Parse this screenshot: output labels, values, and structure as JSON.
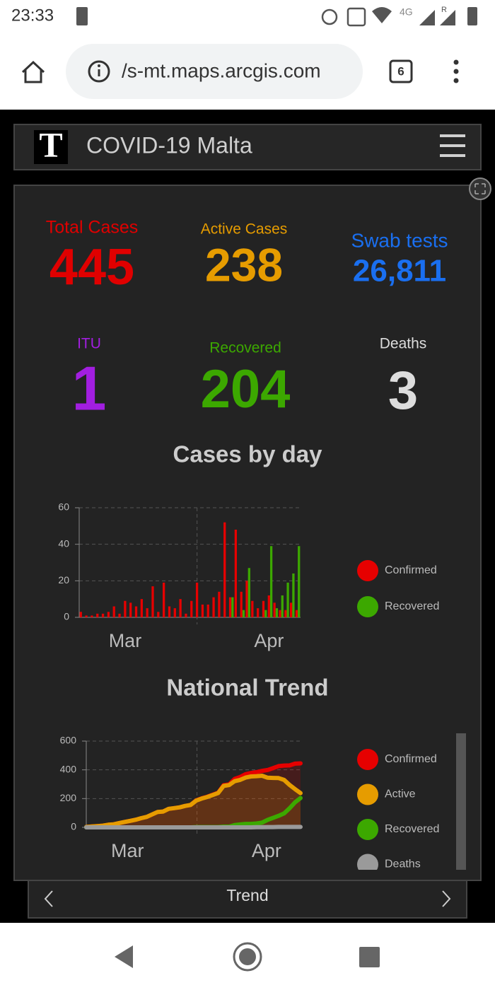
{
  "status_bar": {
    "time": "23:33",
    "network": "4G",
    "roaming": "R"
  },
  "browser": {
    "url": "/s-mt.maps.arcgis.com",
    "tabs": "6"
  },
  "header": {
    "logo": "T",
    "title": "COVID-19 Malta"
  },
  "stats": [
    {
      "label": "Total Cases",
      "value": 445,
      "color": "#e00000"
    },
    {
      "label": "Active Cases",
      "value": 238,
      "color": "#e69c00"
    },
    {
      "label": "Swab tests",
      "value": "26,811",
      "color": "#1a6ff0"
    },
    {
      "label": "ITU",
      "value": 1,
      "color": "#a21ee0"
    },
    {
      "label": "Recovered",
      "value": 204,
      "color": "#3ca800"
    },
    {
      "label": "Deaths",
      "value": 3,
      "color": "#dddddd"
    }
  ],
  "chart_data": [
    {
      "type": "bar",
      "title": "Cases by day",
      "categories": [
        null,
        null,
        null,
        null,
        null,
        null,
        null,
        null,
        null,
        null,
        null,
        null,
        null,
        null,
        null,
        null,
        null,
        null,
        null,
        null,
        null,
        null,
        null,
        null,
        null,
        null,
        null,
        null,
        null,
        null,
        null,
        null,
        null,
        null,
        null,
        null,
        null,
        null,
        null,
        null
      ],
      "series": [
        {
          "name": "Confirmed",
          "color": "#e60000",
          "values": [
            3,
            1,
            1,
            2,
            2,
            3,
            6,
            2,
            9,
            8,
            6,
            10,
            5,
            17,
            3,
            19,
            6,
            5,
            10,
            2,
            9,
            19,
            7,
            7,
            11,
            14,
            52,
            11,
            48,
            14,
            20,
            9,
            5,
            9,
            12,
            8,
            4,
            4,
            8,
            4
          ]
        },
        {
          "name": "Recovered",
          "color": "#3ca800",
          "values": [
            0,
            0,
            0,
            0,
            0,
            0,
            0,
            0,
            0,
            0,
            0,
            0,
            0,
            0,
            0,
            0,
            0,
            0,
            0,
            0,
            0,
            0,
            0,
            0,
            0,
            0,
            0,
            11,
            0,
            4,
            27,
            0,
            0,
            4,
            39,
            5,
            12,
            19,
            24,
            39
          ]
        }
      ],
      "ylim": [
        0,
        60
      ],
      "yticks": [
        0,
        20,
        40,
        60
      ],
      "xticks": [
        {
          "value": 7.8,
          "label": "Mar"
        },
        {
          "value": 33.8,
          "label": "Apr"
        }
      ],
      "grid": true
    },
    {
      "type": "line",
      "title": "National Trend",
      "categories": [
        null,
        null,
        null,
        null,
        null,
        null,
        null,
        null,
        null,
        null,
        null,
        null,
        null,
        null,
        null,
        null,
        null,
        null,
        null,
        null,
        null,
        null,
        null,
        null,
        null,
        null,
        null,
        null,
        null,
        null,
        null,
        null,
        null,
        null,
        null,
        null,
        null,
        null,
        null,
        null
      ],
      "series": [
        {
          "name": "Confirmed",
          "color": "#e60000",
          "values": [
            3,
            6,
            9,
            12,
            18,
            21,
            30,
            38,
            45,
            53,
            64,
            73,
            90,
            107,
            110,
            129,
            134,
            139,
            149,
            156,
            188,
            202,
            213,
            227,
            241,
            293,
            299,
            337,
            350,
            370,
            378,
            384,
            393,
            399,
            412,
            426,
            430,
            431,
            443,
            445
          ]
        },
        {
          "name": "Active",
          "color": "#e69c00",
          "values": [
            3,
            6,
            9,
            12,
            18,
            21,
            30,
            38,
            45,
            53,
            64,
            73,
            90,
            107,
            110,
            129,
            134,
            139,
            149,
            156,
            186,
            200,
            211,
            225,
            239,
            288,
            294,
            321,
            330,
            346,
            354,
            356,
            359,
            345,
            344,
            343,
            330,
            295,
            266,
            238
          ]
        },
        {
          "name": "Recovered",
          "color": "#3ca800",
          "values": [
            0,
            0,
            0,
            0,
            0,
            0,
            0,
            0,
            0,
            0,
            0,
            0,
            0,
            0,
            0,
            0,
            0,
            0,
            0,
            0,
            2,
            2,
            2,
            2,
            2,
            5,
            5,
            16,
            20,
            24,
            24,
            27,
            33,
            52,
            66,
            80,
            97,
            133,
            174,
            204
          ]
        },
        {
          "name": "Deaths",
          "color": "#9a9a9a",
          "values": [
            0,
            0,
            0,
            0,
            0,
            0,
            0,
            0,
            0,
            0,
            0,
            0,
            0,
            0,
            0,
            0,
            0,
            0,
            0,
            0,
            0,
            0,
            0,
            0,
            0,
            0,
            0,
            0,
            0,
            0,
            0,
            1,
            1,
            2,
            2,
            3,
            3,
            3,
            3,
            3
          ]
        }
      ],
      "ylim": [
        0,
        600
      ],
      "yticks": [
        0,
        200,
        400,
        600
      ],
      "xticks": [
        {
          "value": 7.5,
          "label": "Mar"
        },
        {
          "value": 32.8,
          "label": "Apr"
        }
      ],
      "grid": true
    }
  ],
  "tab": {
    "label": "Trend"
  }
}
